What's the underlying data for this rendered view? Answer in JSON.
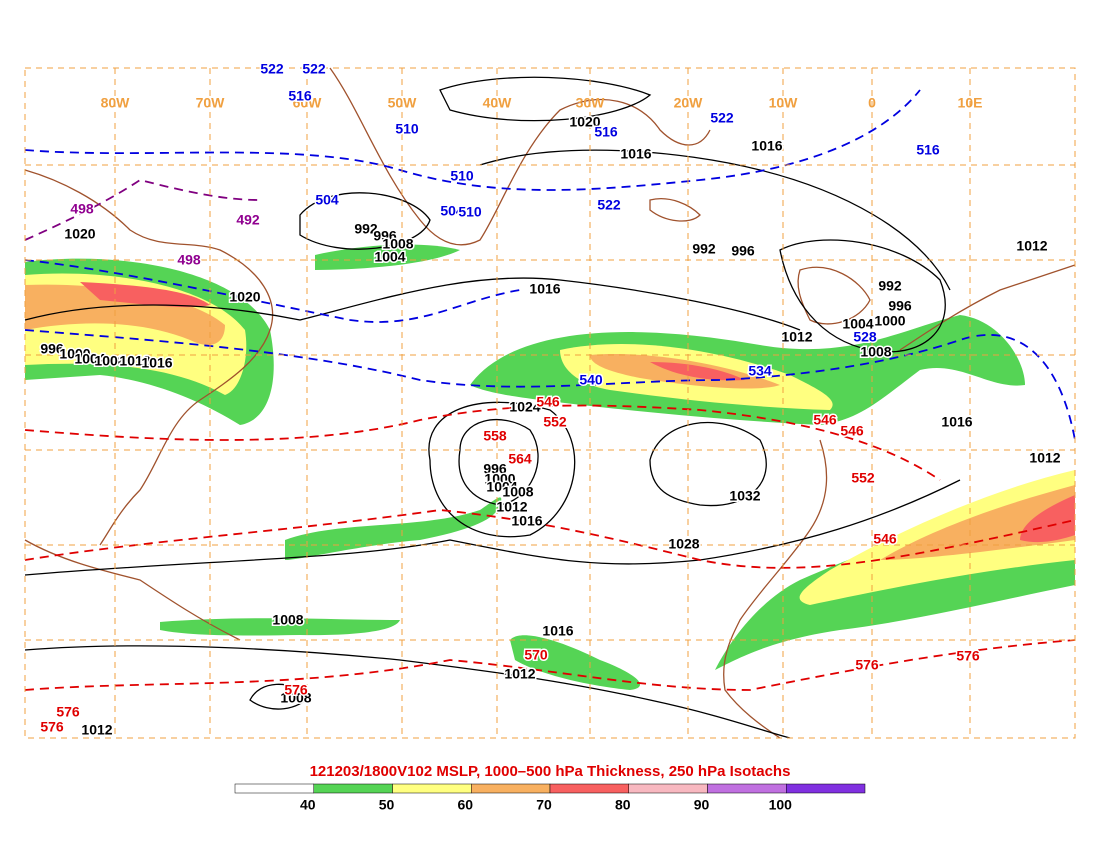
{
  "title": "121203/1800V102 MSLP, 1000–500 hPa Thickness, 250 hPa Isotachs",
  "legend": {
    "colors": [
      "#ffffff",
      "#55d455",
      "#ffff80",
      "#f8b060",
      "#f86060",
      "#f8b8c0",
      "#c070e0",
      "#8030e0"
    ],
    "ticks": [
      "40",
      "50",
      "60",
      "70",
      "80",
      "90",
      "100"
    ]
  },
  "longitude_labels": [
    "80W",
    "70W",
    "60W",
    "50W",
    "40W",
    "30W",
    "20W",
    "10W",
    "0",
    "10E"
  ],
  "mslp_labels": [
    "1020",
    "1016",
    "1016",
    "992",
    "996",
    "1008",
    "1004",
    "1020",
    "1020",
    "1016",
    "992",
    "996",
    "1012",
    "992",
    "996",
    "1004",
    "1000",
    "1008",
    "1012",
    "996",
    "1000",
    "1004",
    "1008",
    "1012",
    "1016",
    "1024",
    "996",
    "1000",
    "1004",
    "1008",
    "1012",
    "1016",
    "1032",
    "1028",
    "1016",
    "1012",
    "1016",
    "1012",
    "1008",
    "1008",
    "1012"
  ],
  "thickness_labels_blue": [
    "522",
    "522",
    "516",
    "510",
    "516",
    "522",
    "516",
    "510",
    "504",
    "504",
    "510",
    "522",
    "528",
    "540",
    "534"
  ],
  "thickness_labels_red": [
    "546",
    "552",
    "558",
    "564",
    "546",
    "546",
    "552",
    "546",
    "570",
    "576",
    "576",
    "576",
    "576",
    "576"
  ],
  "thickness_labels_purple": [
    "498",
    "492",
    "498"
  ]
}
